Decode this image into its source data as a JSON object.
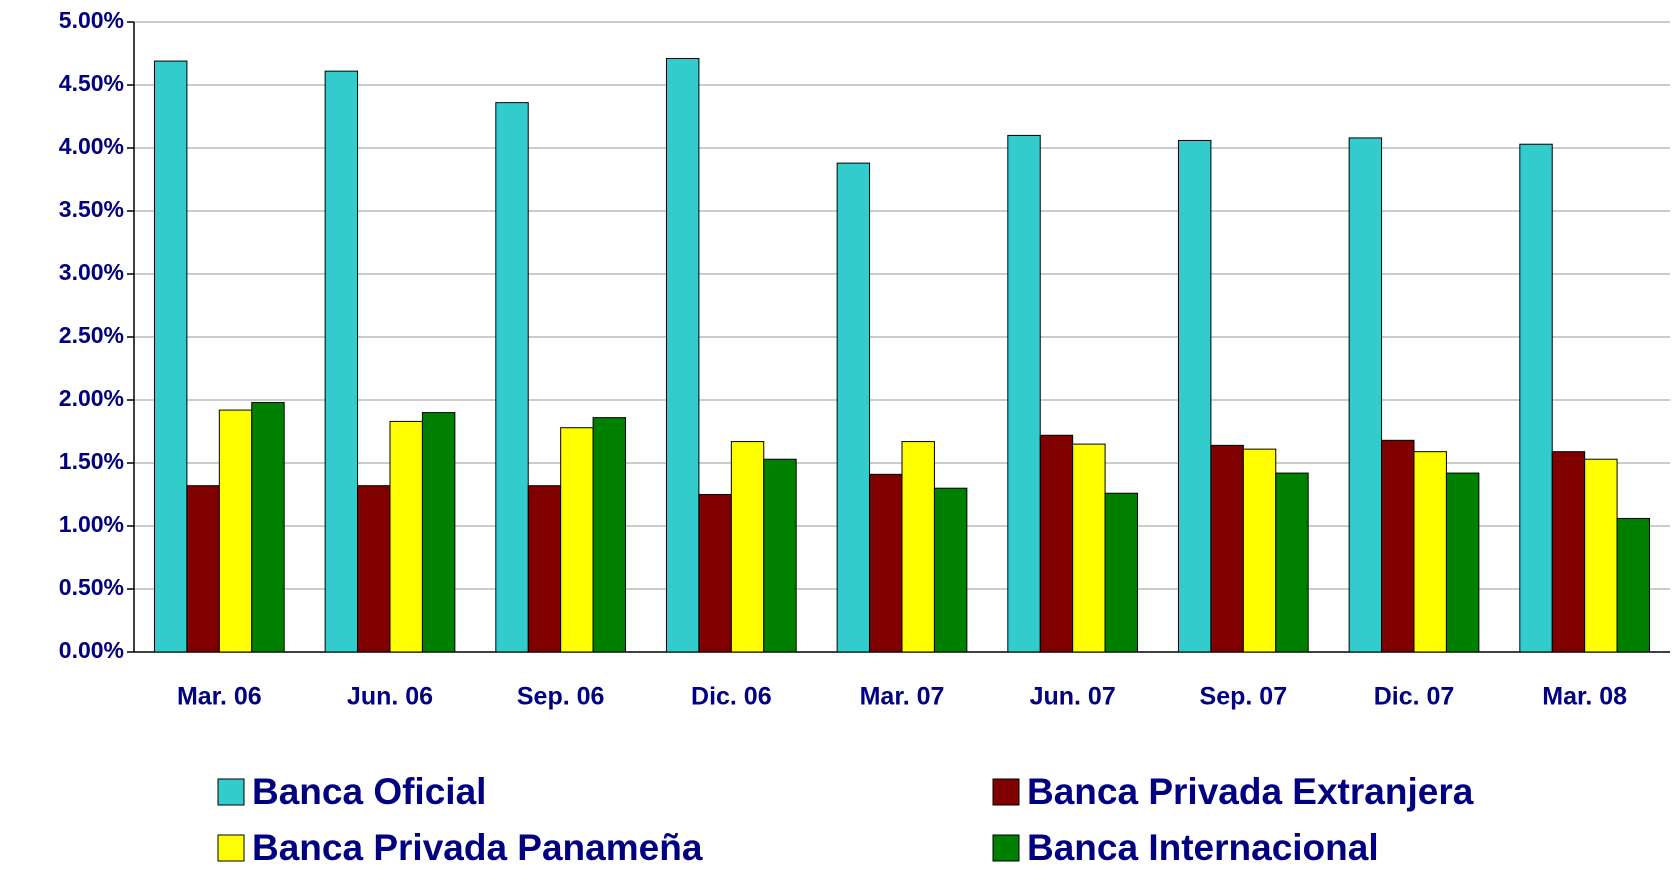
{
  "chart_data": {
    "type": "bar",
    "categories": [
      "Mar. 06",
      "Jun. 06",
      "Sep. 06",
      "Dic. 06",
      "Mar. 07",
      "Jun. 07",
      "Sep. 07",
      "Dic. 07",
      "Mar. 08"
    ],
    "series": [
      {
        "name": "Banca Oficial",
        "color": "#33cccc",
        "values": [
          4.69,
          4.61,
          4.36,
          4.71,
          3.88,
          4.1,
          4.06,
          4.08,
          4.03
        ]
      },
      {
        "name": "Banca Privada Extranjera",
        "color": "#800000",
        "values": [
          1.32,
          1.32,
          1.32,
          1.25,
          1.41,
          1.72,
          1.64,
          1.68,
          1.59
        ]
      },
      {
        "name": "Banca Privada Panameña",
        "color": "#ffff00",
        "values": [
          1.92,
          1.83,
          1.78,
          1.67,
          1.67,
          1.65,
          1.61,
          1.59,
          1.53
        ]
      },
      {
        "name": "Banca Internacional",
        "color": "#008000",
        "values": [
          1.98,
          1.9,
          1.86,
          1.53,
          1.3,
          1.26,
          1.42,
          1.42,
          1.06
        ]
      }
    ],
    "ylim": [
      0,
      5
    ],
    "yticks": [
      {
        "value": 0,
        "label": "0.00%"
      },
      {
        "value": 0.5,
        "label": "0.50%"
      },
      {
        "value": 1,
        "label": "1.00%"
      },
      {
        "value": 1.5,
        "label": "1.50%"
      },
      {
        "value": 2,
        "label": "2.00%"
      },
      {
        "value": 2.5,
        "label": "2.50%"
      },
      {
        "value": 3,
        "label": "3.00%"
      },
      {
        "value": 3.5,
        "label": "3.50%"
      },
      {
        "value": 4,
        "label": "4.00%"
      },
      {
        "value": 4.5,
        "label": "4.50%"
      },
      {
        "value": 5,
        "label": "5.00%"
      }
    ],
    "grid": true
  }
}
